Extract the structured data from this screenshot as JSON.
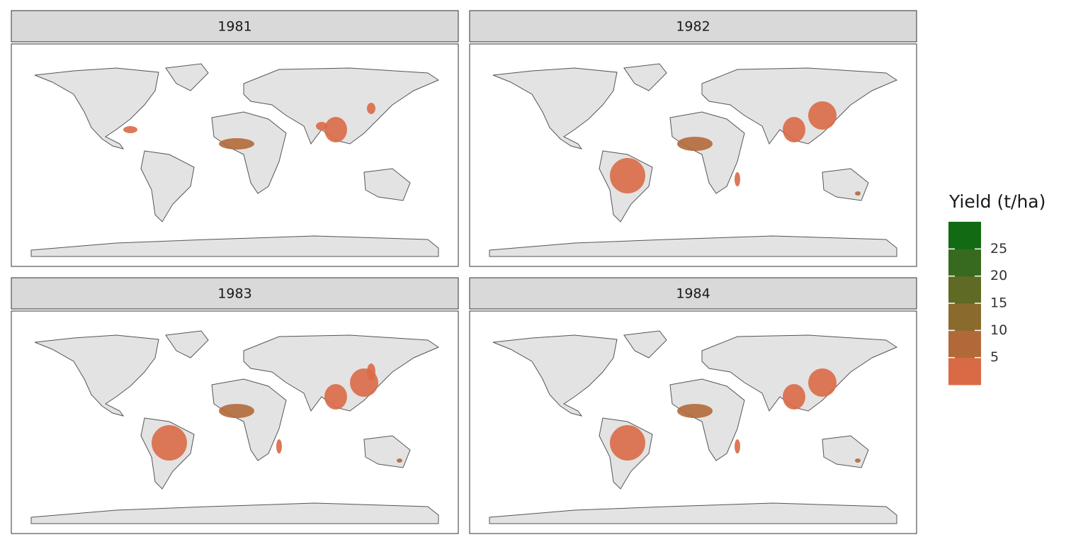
{
  "panels": [
    {
      "title": "1981"
    },
    {
      "title": "1982"
    },
    {
      "title": "1983"
    },
    {
      "title": "1984"
    }
  ],
  "legend": {
    "title": "Yield (t/ha)",
    "ticks": [
      5,
      10,
      15,
      20,
      25
    ],
    "lim": [
      0,
      30
    ],
    "colors": [
      "#d96a46",
      "#b2693a",
      "#8b6a2e",
      "#5f6a24",
      "#376a1e",
      "#126a12"
    ]
  }
}
